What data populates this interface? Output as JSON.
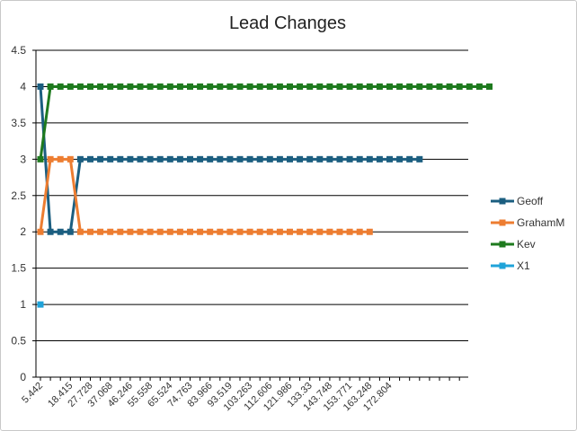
{
  "chart_data": {
    "type": "line",
    "title": "Lead Changes",
    "xlabel": "",
    "ylabel": "",
    "ylim": [
      0,
      4.5
    ],
    "y_step": 0.5,
    "grid": true,
    "legend_position": "right",
    "x_tick_labels": [
      "5.442",
      "18.415",
      "27.728",
      "37.068",
      "46.246",
      "55.558",
      "65.524",
      "74.763",
      "83.966",
      "93.519",
      "103.263",
      "112.606",
      "121.986",
      "133.33",
      "143.748",
      "153.771",
      "163.248",
      "172.804"
    ],
    "series": [
      {
        "name": "Geoff",
        "color": "#1b5e80",
        "values": [
          4,
          2,
          2,
          2,
          3,
          3,
          3,
          3,
          3,
          3,
          3,
          3,
          3,
          3,
          3,
          3,
          3,
          3,
          3,
          3,
          3,
          3,
          3,
          3,
          3,
          3,
          3,
          3,
          3,
          3,
          3,
          3,
          3,
          3,
          3,
          3,
          3,
          3,
          3
        ]
      },
      {
        "name": "GrahamM",
        "color": "#ed7d31",
        "values": [
          2,
          3,
          3,
          3,
          2,
          2,
          2,
          2,
          2,
          2,
          2,
          2,
          2,
          2,
          2,
          2,
          2,
          2,
          2,
          2,
          2,
          2,
          2,
          2,
          2,
          2,
          2,
          2,
          2,
          2,
          2,
          2,
          2,
          2
        ]
      },
      {
        "name": "Kev",
        "color": "#1e7a1e",
        "values": [
          3,
          4,
          4,
          4,
          4,
          4,
          4,
          4,
          4,
          4,
          4,
          4,
          4,
          4,
          4,
          4,
          4,
          4,
          4,
          4,
          4,
          4,
          4,
          4,
          4,
          4,
          4,
          4,
          4,
          4,
          4,
          4,
          4,
          4,
          4,
          4,
          4,
          4,
          4,
          4,
          4,
          4,
          4,
          4,
          4,
          4
        ]
      },
      {
        "name": "X1",
        "color": "#1fa3d9",
        "values": [
          1
        ]
      }
    ]
  }
}
